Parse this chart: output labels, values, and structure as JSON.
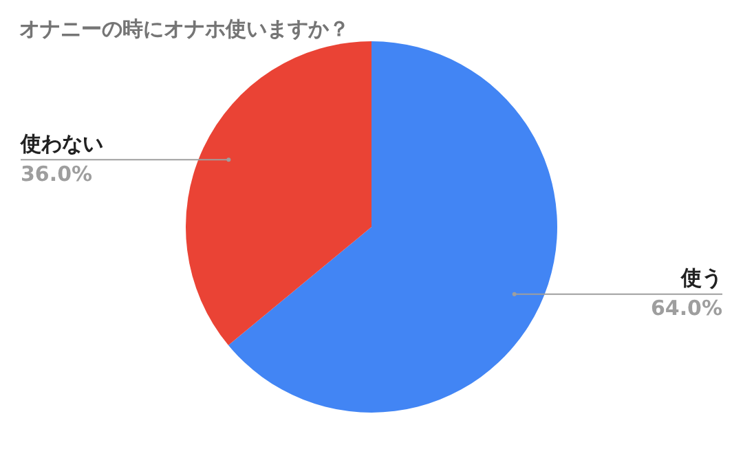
{
  "chart_data": {
    "type": "pie",
    "title": "オナニーの時にオナホ使いますか？",
    "categories": [
      "使う",
      "使わない"
    ],
    "values": [
      64.0,
      36.0
    ],
    "colors": [
      "#4285f4",
      "#ea4335"
    ],
    "value_labels": [
      "64.0%",
      "36.0%"
    ],
    "legend": false
  }
}
